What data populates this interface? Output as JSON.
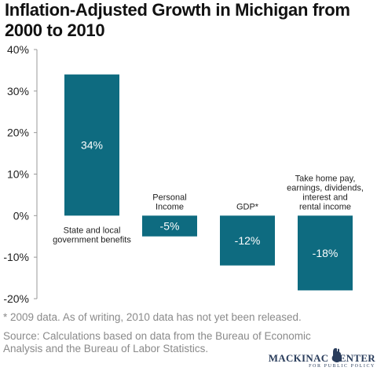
{
  "chart_data": {
    "type": "bar",
    "title": "Inflation-Adjusted Growth in Michigan from 2000 to 2010",
    "categories": [
      [
        "State and local",
        "government benefits"
      ],
      [
        "Personal",
        "Income"
      ],
      [
        "GDP*"
      ],
      [
        "Take home pay,",
        "earnings, dividends,",
        "interest and",
        "rental income"
      ]
    ],
    "values": [
      34,
      -5,
      -12,
      -18
    ],
    "data_labels": [
      "34%",
      "-5%",
      "-12%",
      "-18%"
    ],
    "yticks": [
      40,
      30,
      20,
      10,
      0,
      -10,
      -20
    ],
    "ytick_labels": [
      "40%",
      "30%",
      "20%",
      "10%",
      "0%",
      "-10%",
      "-20%"
    ],
    "ylim": [
      -20,
      40
    ],
    "grid": false,
    "bar_color": "#0e6b80",
    "label_color": "#ffffff"
  },
  "footnote": "* 2009 data. As of writing, 2010 data has not yet been released.",
  "source": "Source: Calculations based on data from the Bureau of Economic Analysis and the Bureau of Labor Statistics.",
  "logo": {
    "name": "MACKINAC CENTER",
    "tagline": "FOR PUBLIC POLICY"
  }
}
